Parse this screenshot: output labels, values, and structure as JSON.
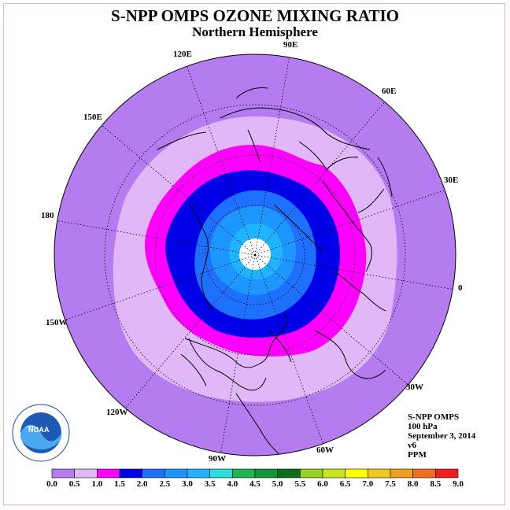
{
  "title": "S-NPP OMPS OZONE MIXING RATIO",
  "subtitle": "Northern Hemisphere",
  "longitude_labels": {
    "lon_90e": "90E",
    "lon_60e": "60E",
    "lon_30e": "30E",
    "lon_0": "0",
    "lon_30w": "30W",
    "lon_60w": "60W",
    "lon_90w": "90W",
    "lon_120w": "120W",
    "lon_150w": "150W",
    "lon_180": "180",
    "lon_150e": "150E",
    "lon_120e": "120E"
  },
  "info": {
    "instrument": "S-NPP OMPS",
    "level": "100 hPa",
    "date": "September 3, 2014",
    "version": "v6",
    "unit": "PPM"
  },
  "logo_text": "NOAA",
  "colorbar": {
    "ticks": [
      "0.0",
      "0.5",
      "1.0",
      "1.5",
      "2.0",
      "2.5",
      "3.0",
      "3.5",
      "4.0",
      "4.5",
      "5.0",
      "5.5",
      "6.0",
      "6.5",
      "7.0",
      "7.5",
      "8.0",
      "8.5",
      "9.0"
    ],
    "colors": [
      "#b57cf0",
      "#e0b8f8",
      "#ff00ff",
      "#0000e6",
      "#1e70ff",
      "#1e96ff",
      "#1eb4ff",
      "#28e0e0",
      "#1eb450",
      "#11963c",
      "#0a6e1e",
      "#96d21e",
      "#c8e61e",
      "#ffff00",
      "#f0c81e",
      "#f0a01e",
      "#f06e1e",
      "#f01e1e",
      "#8c5a3c"
    ]
  },
  "map": {
    "colors": {
      "outer": "#b57cf0",
      "band_0_5": "#e0b8f8",
      "band_1_0": "#ff00ff",
      "band_1_5": "#0000e6",
      "band_2_0": "#1e70ff",
      "band_2_5": "#1e96ff",
      "band_3_0": "#1eb4ff",
      "pole": "#ffffff"
    }
  }
}
